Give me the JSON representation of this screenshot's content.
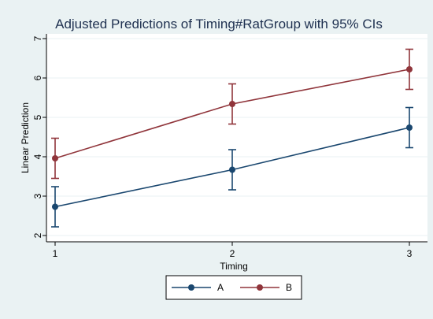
{
  "chart_data": {
    "type": "line",
    "title": "Adjusted Predictions of Timing#RatGroup with 95% CIs",
    "xlabel": "Timing",
    "ylabel": "Linear Prediction",
    "x": [
      1,
      2,
      3
    ],
    "xlim": [
      1,
      3
    ],
    "ylim": [
      2,
      7
    ],
    "yticks": [
      2,
      3,
      4,
      5,
      6,
      7
    ],
    "xticks": [
      1,
      2,
      3
    ],
    "grid": true,
    "legend_position": "bottom",
    "series": [
      {
        "name": "A",
        "color": "#1a476f",
        "values": [
          2.73,
          3.67,
          4.74
        ],
        "ci_lower": [
          2.22,
          3.16,
          4.23
        ],
        "ci_upper": [
          3.24,
          4.18,
          5.25
        ]
      },
      {
        "name": "B",
        "color": "#90353b",
        "values": [
          3.96,
          5.34,
          6.22
        ],
        "ci_lower": [
          3.45,
          4.83,
          5.71
        ],
        "ci_upper": [
          4.47,
          5.85,
          6.73
        ]
      }
    ]
  },
  "colors": {
    "outer_background": "#eaf2f3",
    "plot_background": "#ffffff",
    "grid": "#eaf2f3",
    "title": "#1e3050"
  }
}
